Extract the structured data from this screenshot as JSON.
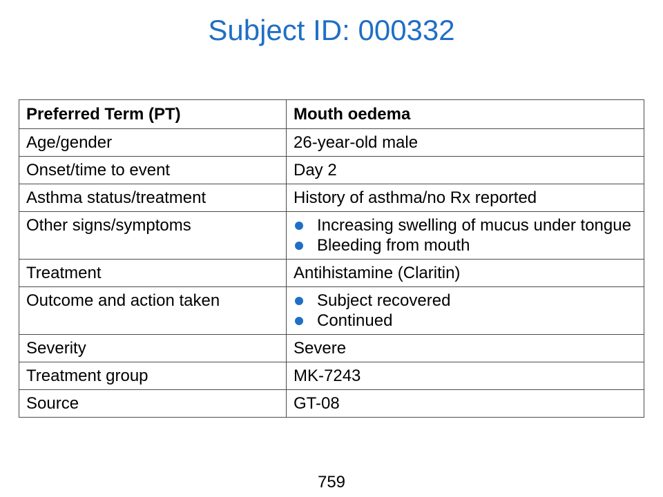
{
  "title": "Subject ID: 000332",
  "colors": {
    "title": "#1f6fc5",
    "bullet": "#1f6fc5",
    "border": "#4a4a4a"
  },
  "table": {
    "header": {
      "label": "Preferred Term (PT)",
      "value": "Mouth oedema"
    },
    "rows": [
      {
        "label": "Age/gender",
        "value": "26-year-old male"
      },
      {
        "label": "Onset/time to event",
        "value": "Day 2"
      },
      {
        "label": "Asthma status/treatment",
        "value": "History of asthma/no Rx reported"
      },
      {
        "label": "Other signs/symptoms",
        "bullets": [
          "Increasing swelling of mucus under tongue",
          "Bleeding from mouth"
        ]
      },
      {
        "label": "Treatment",
        "value": "Antihistamine (Claritin)"
      },
      {
        "label": "Outcome and action taken",
        "bullets": [
          "Subject recovered",
          "Continued"
        ]
      },
      {
        "label": "Severity",
        "value": "Severe"
      },
      {
        "label": "Treatment group",
        "value": "MK-7243"
      },
      {
        "label": "Source",
        "value": "GT-08"
      }
    ]
  },
  "page_number": "759"
}
